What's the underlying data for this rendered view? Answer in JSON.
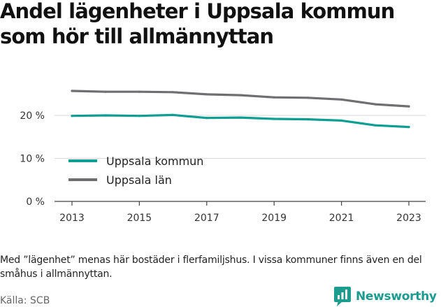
{
  "title": "Andel lägenheter i Uppsala kommun som hör till allmännyttan",
  "chart_data": {
    "type": "line",
    "x": [
      2013,
      2014,
      2015,
      2016,
      2017,
      2018,
      2019,
      2020,
      2021,
      2022,
      2023
    ],
    "series": [
      {
        "name": "Uppsala kommun",
        "color": "#0f9e93",
        "values": [
          19.9,
          20.0,
          19.9,
          20.1,
          19.4,
          19.5,
          19.2,
          19.1,
          18.8,
          17.7,
          17.3
        ]
      },
      {
        "name": "Uppsala län",
        "color": "#6f6f72",
        "values": [
          25.7,
          25.5,
          25.5,
          25.4,
          24.9,
          24.7,
          24.2,
          24.1,
          23.7,
          22.6,
          22.1
        ]
      }
    ],
    "xticks": [
      "2013",
      "2015",
      "2017",
      "2019",
      "2021",
      "2023"
    ],
    "yticks": [
      {
        "value": 0,
        "label": "0 %"
      },
      {
        "value": 10,
        "label": "10 %"
      },
      {
        "value": 20,
        "label": "20 %"
      }
    ],
    "ylim": [
      0,
      27
    ],
    "xlim": [
      2012.5,
      2023.5
    ],
    "xlabel": "",
    "ylabel": "",
    "grid": "horizontal",
    "legend_placement": "bottom-left"
  },
  "note": "Med ”lägenhet” menas här bostäder i flerfamiljshus. I vissa kommuner finns även en del småhus i allmännyttan.",
  "source": "Källa: SCB",
  "brand": {
    "name": "Newsworthy",
    "logo_icon": "newsworthy-logo-icon",
    "color": "#1c9c8f"
  }
}
